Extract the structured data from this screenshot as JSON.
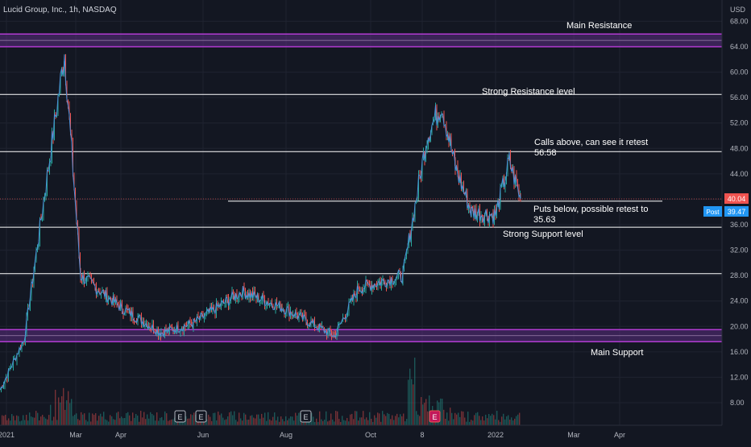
{
  "header": {
    "title": "Lucid Group, Inc., 1h, NASDAQ"
  },
  "price_axis": {
    "currency": "USD",
    "ticks": [
      "68.00",
      "64.00",
      "60.00",
      "56.00",
      "52.00",
      "48.00",
      "44.00",
      "40.00",
      "36.00",
      "32.00",
      "28.00",
      "24.00",
      "20.00",
      "16.00",
      "12.00",
      "8.00"
    ],
    "last_price_label": "40.04",
    "post_label": "Post",
    "post_price_label": "39.47"
  },
  "time_axis": {
    "labels": [
      "2021",
      "Mar",
      "Apr",
      "Jun",
      "Aug",
      "Oct",
      "8",
      "2022",
      "Mar",
      "Apr"
    ]
  },
  "annotations": {
    "main_resistance": "Main Resistance",
    "strong_resistance": "Strong Resistance level",
    "calls_above": "Calls above, can see it retest",
    "calls_target": "56.58",
    "puts_below": "Puts below, possible retest to",
    "puts_target": "35.63",
    "strong_support": "Strong Support level",
    "main_support": "Main Support"
  },
  "events": [
    "E",
    "E",
    "E",
    "E"
  ],
  "colors": {
    "background": "#131722",
    "grid": "#1f2330",
    "zone_fill": "#5b2d82",
    "zone_border": "#b13bd1",
    "level_line": "#ffffff",
    "candle_up": "#26a69a",
    "candle_down": "#ef5350",
    "price_line": "#4d8fd8",
    "last_price_bg": "#ef5350",
    "post_bg": "#2962ff"
  },
  "chart_data": {
    "type": "line",
    "title": "",
    "x": [
      "2021-01",
      "2021-02",
      "2021-02-18",
      "2021-03",
      "2021-04",
      "2021-05",
      "2021-06",
      "2021-07",
      "2021-08",
      "2021-09",
      "2021-10",
      "2021-10-20",
      "2021-11",
      "2021-11-10",
      "2021-11-17",
      "2021-12",
      "2021-12-20",
      "2022-01",
      "2022-01-10"
    ],
    "series": [
      {
        "values": [
          10.0,
          18.0,
          63.0,
          28.0,
          23.0,
          19.0,
          20.5,
          25.5,
          23.0,
          18.5,
          26.0,
          28.0,
          50.0,
          55.0,
          45.0,
          38.0,
          37.5,
          46.0,
          40.04
        ]
      }
    ],
    "levels": [
      {
        "label": "Main Resistance",
        "low": 64.0,
        "high": 66.0,
        "kind": "zone"
      },
      {
        "label": "Strong Resistance level",
        "value": 56.5,
        "kind": "line"
      },
      {
        "label": "Calls above, can see it retest",
        "value": 47.5,
        "kind": "line"
      },
      {
        "label": "",
        "value": 39.7,
        "kind": "line"
      },
      {
        "label": "Puts below, possible retest to",
        "value": 35.6,
        "kind": "line"
      },
      {
        "label": "",
        "value": 28.3,
        "kind": "line"
      },
      {
        "label": "Main Support",
        "low": 17.6,
        "high": 19.5,
        "kind": "zone"
      }
    ],
    "ylim": [
      6,
      70
    ],
    "yscale": "linear",
    "grid": true,
    "legend": "none"
  }
}
